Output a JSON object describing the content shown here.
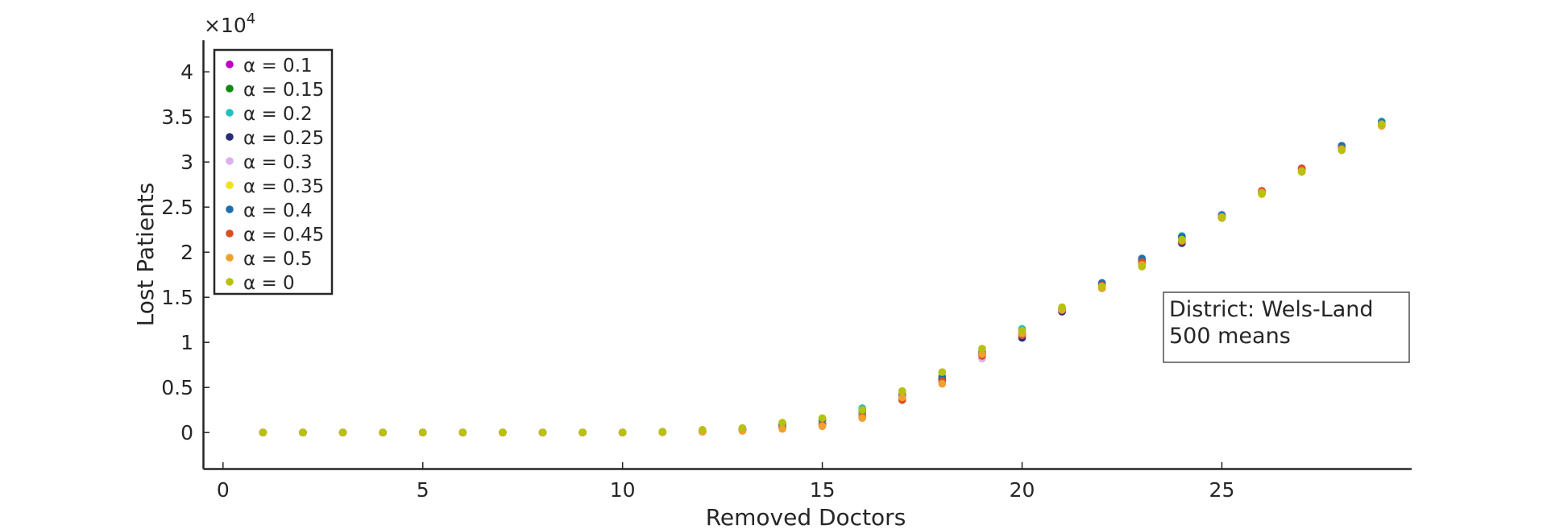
{
  "chart_data": {
    "type": "scatter",
    "title": "",
    "xlabel": "Removed Doctors",
    "ylabel": "Lost Patients",
    "y_multiplier_label": "×10",
    "y_multiplier_exponent": "4",
    "xlim": [
      -0.5,
      29.75
    ],
    "ylim": [
      -4000,
      43500
    ],
    "xticks": [
      0,
      5,
      10,
      15,
      20,
      25
    ],
    "xtick_labels": [
      "0",
      "5",
      "10",
      "15",
      "20",
      "25"
    ],
    "yticks": [
      0,
      5000,
      10000,
      15000,
      20000,
      25000,
      30000,
      35000,
      40000
    ],
    "ytick_labels": [
      "0",
      "0.5",
      "1",
      "1.5",
      "2",
      "2.5",
      "3",
      "3.5",
      "4"
    ],
    "grid": false,
    "legend_position": "top-left",
    "annotation": {
      "lines": [
        "District: Wels-Land",
        "500 means"
      ],
      "position": "right"
    },
    "x": [
      1,
      2,
      3,
      4,
      5,
      6,
      7,
      8,
      9,
      10,
      11,
      12,
      13,
      14,
      15,
      16,
      17,
      18,
      19,
      20,
      21,
      22,
      23,
      24,
      25,
      26,
      27,
      28,
      29
    ],
    "series": [
      {
        "name": "α = 0.1",
        "color": "#c000c0",
        "values": [
          0,
          0,
          0,
          0,
          0,
          0,
          0,
          0,
          0,
          0,
          50,
          150,
          300,
          700,
          1200,
          2200,
          4200,
          6300,
          8600,
          10900,
          13700,
          16300,
          18900,
          21300,
          24000,
          26600,
          29300,
          31500,
          34200
        ]
      },
      {
        "name": "α = 0.15",
        "color": "#118811",
        "values": [
          0,
          0,
          0,
          0,
          0,
          0,
          0,
          0,
          0,
          0,
          50,
          200,
          400,
          800,
          1000,
          2100,
          4000,
          6000,
          8900,
          11100,
          13500,
          16000,
          18700,
          21600,
          23800,
          26600,
          29100,
          31500,
          34300
        ]
      },
      {
        "name": "α = 0.2",
        "color": "#22c0c0",
        "values": [
          0,
          0,
          0,
          0,
          0,
          0,
          0,
          0,
          0,
          0,
          60,
          250,
          450,
          1000,
          1500,
          2700,
          4300,
          6300,
          9000,
          11500,
          13800,
          16400,
          19100,
          21800,
          24000,
          26700,
          29200,
          31800,
          34500
        ]
      },
      {
        "name": "α = 0.25",
        "color": "#2b2b7a",
        "values": [
          0,
          0,
          0,
          0,
          0,
          0,
          0,
          0,
          0,
          0,
          40,
          150,
          300,
          600,
          900,
          1900,
          3800,
          5900,
          8700,
          10500,
          13400,
          16500,
          19200,
          21000,
          23800,
          26500,
          29000,
          31600,
          34100
        ]
      },
      {
        "name": "α = 0.3",
        "color": "#dcb0f0",
        "values": [
          0,
          0,
          0,
          0,
          0,
          0,
          0,
          0,
          0,
          0,
          30,
          100,
          250,
          500,
          800,
          1800,
          3700,
          5600,
          8200,
          10800,
          13600,
          16100,
          18600,
          21200,
          24200,
          26600,
          29100,
          31400,
          34200
        ]
      },
      {
        "name": "α = 0.35",
        "color": "#f0e020",
        "values": [
          0,
          0,
          0,
          0,
          0,
          0,
          0,
          0,
          0,
          0,
          50,
          200,
          400,
          800,
          1300,
          2300,
          4400,
          6500,
          9300,
          11200,
          13700,
          16100,
          18500,
          21400,
          23900,
          26400,
          28900,
          31500,
          34000
        ]
      },
      {
        "name": "α = 0.4",
        "color": "#1f6fb0",
        "values": [
          0,
          0,
          0,
          0,
          0,
          0,
          0,
          0,
          0,
          0,
          50,
          200,
          350,
          900,
          1400,
          2400,
          4100,
          6100,
          8800,
          11300,
          13700,
          16600,
          19300,
          21700,
          24100,
          26800,
          29200,
          31800,
          34400
        ]
      },
      {
        "name": "α = 0.45",
        "color": "#d95020",
        "values": [
          0,
          0,
          0,
          0,
          0,
          0,
          0,
          0,
          0,
          0,
          30,
          100,
          200,
          500,
          800,
          1700,
          3600,
          5700,
          8500,
          10800,
          13600,
          16300,
          18900,
          21200,
          23800,
          26800,
          29300,
          31500,
          34100
        ]
      },
      {
        "name": "α = 0.5",
        "color": "#f0a030",
        "values": [
          0,
          0,
          0,
          0,
          0,
          0,
          0,
          0,
          0,
          0,
          30,
          100,
          200,
          400,
          700,
          1600,
          3900,
          5400,
          8700,
          11000,
          13600,
          16000,
          18600,
          21300,
          23900,
          26600,
          29000,
          31400,
          34000
        ]
      },
      {
        "name": "α = 0",
        "color": "#b8c010",
        "values": [
          0,
          0,
          0,
          0,
          0,
          0,
          0,
          0,
          0,
          0,
          100,
          300,
          500,
          1100,
          1600,
          2500,
          4600,
          6700,
          9300,
          11300,
          13900,
          16200,
          18400,
          21400,
          23800,
          26500,
          28900,
          31300,
          34200
        ]
      }
    ]
  }
}
